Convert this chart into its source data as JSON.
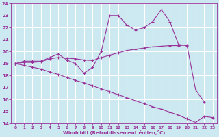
{
  "bg_color": "#cce8f0",
  "grid_color": "#ffffff",
  "line_color": "#993399",
  "marker": "+",
  "xlabel": "Windchill (Refroidissement éolien,°C)",
  "xlim": [
    -0.5,
    23.5
  ],
  "ylim": [
    14,
    24
  ],
  "xticks": [
    0,
    1,
    2,
    3,
    4,
    5,
    6,
    7,
    8,
    9,
    10,
    11,
    12,
    13,
    14,
    15,
    16,
    17,
    18,
    19,
    20,
    21,
    22,
    23
  ],
  "yticks": [
    14,
    15,
    16,
    17,
    18,
    19,
    20,
    21,
    22,
    23,
    24
  ],
  "line1_x": [
    0,
    1,
    2,
    3,
    4,
    5,
    6,
    7,
    8,
    9,
    10,
    11,
    12,
    13,
    14,
    15,
    16,
    17,
    18,
    19,
    20,
    21,
    22
  ],
  "line1_y": [
    19.0,
    19.2,
    19.2,
    19.2,
    19.5,
    19.8,
    19.3,
    19.0,
    18.2,
    18.7,
    20.0,
    23.0,
    23.0,
    22.2,
    21.8,
    22.0,
    22.5,
    23.5,
    22.5,
    20.6,
    20.5,
    16.8,
    15.8
  ],
  "line2_x": [
    0,
    1,
    2,
    3,
    4,
    5,
    6,
    7,
    8,
    9,
    10,
    11,
    12,
    13,
    14,
    15,
    16,
    17,
    18,
    19,
    20
  ],
  "line2_y": [
    19.0,
    19.1,
    19.1,
    19.15,
    19.4,
    19.5,
    19.45,
    19.4,
    19.3,
    19.25,
    19.5,
    19.7,
    19.9,
    20.1,
    20.2,
    20.3,
    20.4,
    20.45,
    20.5,
    20.5,
    20.55
  ],
  "line3_x": [
    0,
    1,
    2,
    3,
    4,
    5,
    6,
    7,
    8,
    9,
    10,
    11,
    12,
    13,
    14,
    15,
    16,
    17,
    18,
    19,
    20,
    21,
    22,
    23
  ],
  "line3_y": [
    19.0,
    18.85,
    18.7,
    18.55,
    18.3,
    18.1,
    17.85,
    17.6,
    17.4,
    17.15,
    16.9,
    16.65,
    16.4,
    16.15,
    15.9,
    15.65,
    15.4,
    15.2,
    14.95,
    14.7,
    14.4,
    14.1,
    14.6,
    14.5
  ]
}
